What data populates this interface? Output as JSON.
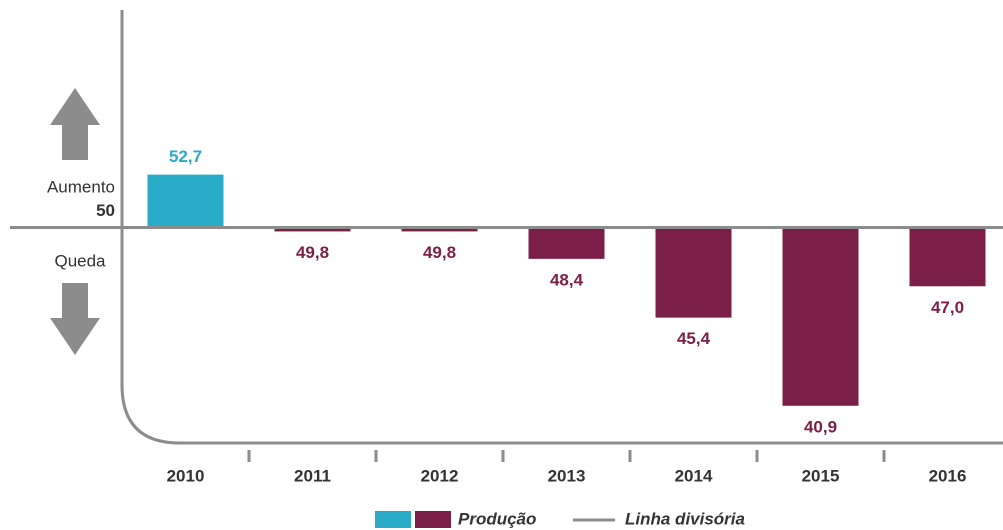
{
  "chart_data": {
    "type": "bar",
    "categories": [
      "2010",
      "2011",
      "2012",
      "2013",
      "2014",
      "2015",
      "2016"
    ],
    "series": [
      {
        "name": "Produção",
        "colors": [
          "#29abc8",
          "#7b1e48"
        ],
        "values": [
          52.7,
          49.8,
          49.8,
          48.4,
          45.4,
          40.9,
          47.0
        ],
        "value_labels": [
          "52,7",
          "49,8",
          "49,8",
          "48,4",
          "45,4",
          "40,9",
          "47,0"
        ]
      }
    ],
    "divider": {
      "name": "Linha divisória",
      "color": "#8c8c8c"
    },
    "ylim": [
      39,
      61
    ],
    "yticks": [
      50
    ],
    "annotations": [
      "Aumento",
      "Queda"
    ]
  }
}
